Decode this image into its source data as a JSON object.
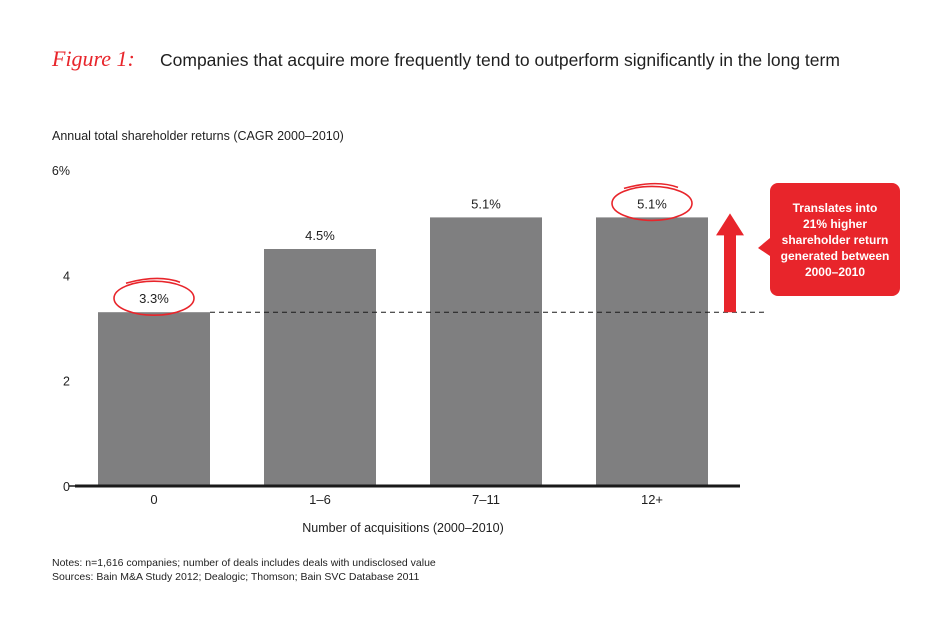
{
  "header": {
    "figure_label": "Figure 1:",
    "title": "Companies that acquire more frequently tend to outperform significantly in the long term"
  },
  "chart_data": {
    "type": "bar",
    "title": "Companies that acquire more frequently tend to outperform significantly in the long term",
    "ylabel": "Annual total shareholder returns (CAGR 2000–2010)",
    "xlabel": "Number of acquisitions (2000–2010)",
    "categories": [
      "0",
      "1–6",
      "7–11",
      "12+"
    ],
    "values": [
      3.3,
      4.5,
      5.1,
      5.1
    ],
    "data_labels": [
      "3.3%",
      "4.5%",
      "5.1%",
      "5.1%"
    ],
    "ylim": [
      0,
      6
    ],
    "yticks": [
      {
        "value": 0,
        "label": "0"
      },
      {
        "value": 2,
        "label": "2"
      },
      {
        "value": 4,
        "label": "4"
      },
      {
        "value": 6,
        "label": "6%"
      }
    ],
    "reference_line": {
      "value": 3.3,
      "style": "dashed"
    },
    "highlighted_indices": [
      0,
      3
    ],
    "callout": {
      "lines": [
        "Translates into",
        "21% higher",
        "shareholder return",
        "generated between",
        "2000–2010"
      ],
      "from_value": 3.3,
      "to_value": 5.1,
      "placement": "right"
    },
    "grid": false
  },
  "notes": {
    "line1": "Notes: n=1,616 companies; number of deals includes deals with undisclosed value",
    "line2": "Sources: Bain M&A Study 2012; Dealogic; Thomson; Bain SVC Database 2011"
  },
  "colors": {
    "bar": "#7f7f80",
    "accent": "#e8252b",
    "axis": "#1a1a1a",
    "text": "#1f1f1f"
  }
}
